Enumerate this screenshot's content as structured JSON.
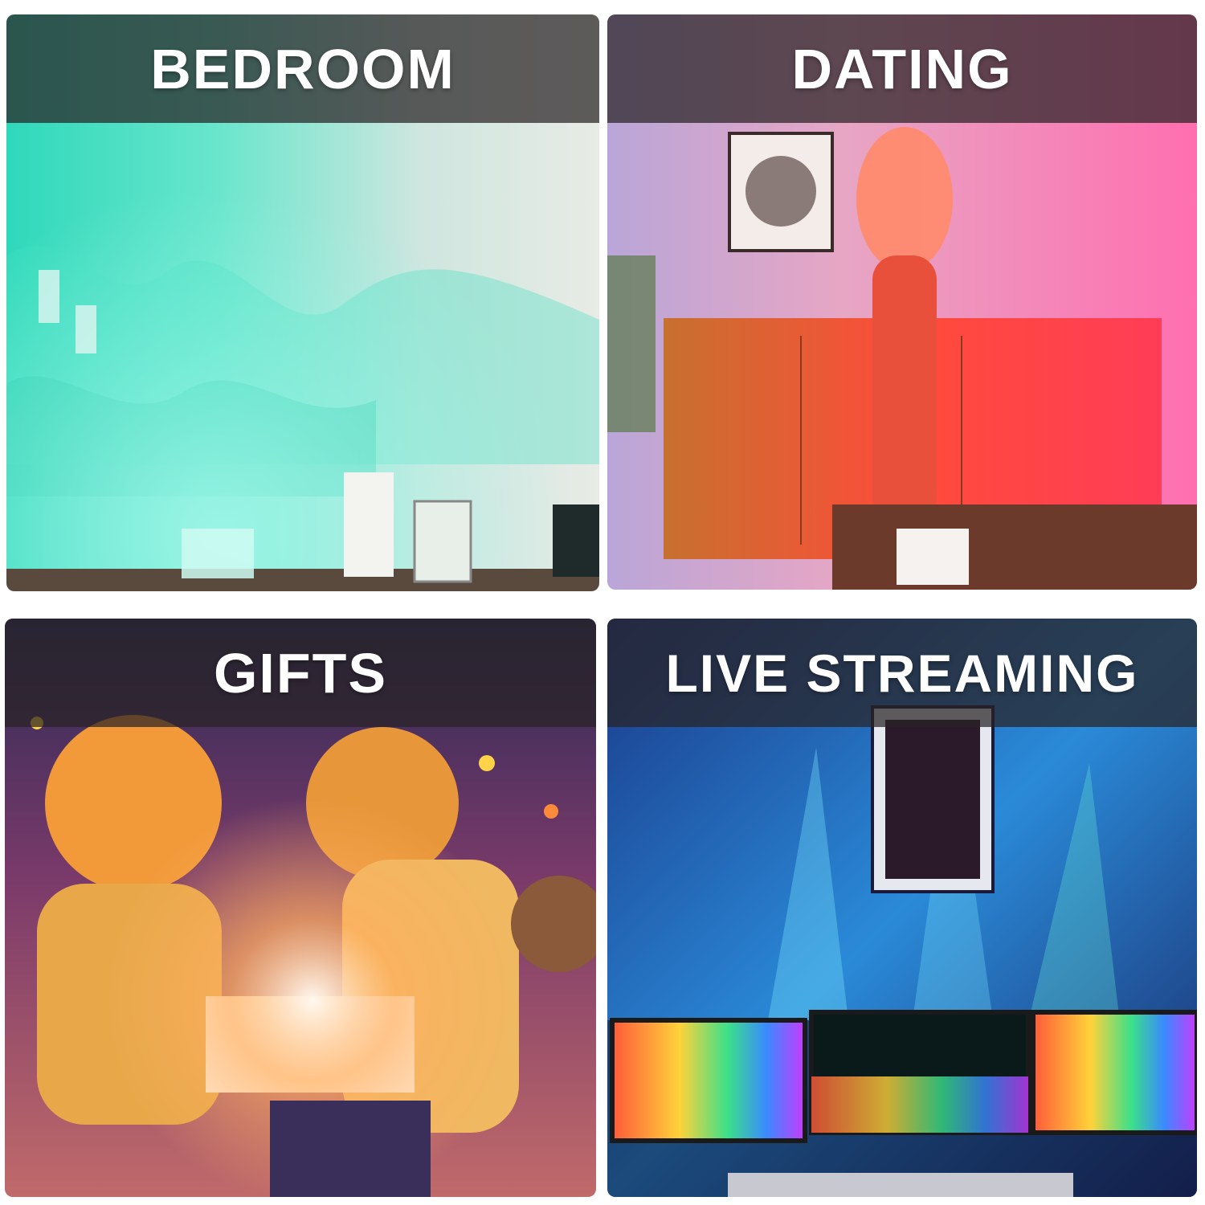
{
  "panels": {
    "bedroom": {
      "label": "BEDROOM",
      "accent": "#3fe0c0"
    },
    "dating": {
      "label": "DATING",
      "accent": "#ff5a3c"
    },
    "gifts": {
      "label": "GIFTS",
      "accent": "#ffa23a"
    },
    "live": {
      "label": "LIVE STREAMING",
      "accent": "#3ec8ff"
    }
  }
}
